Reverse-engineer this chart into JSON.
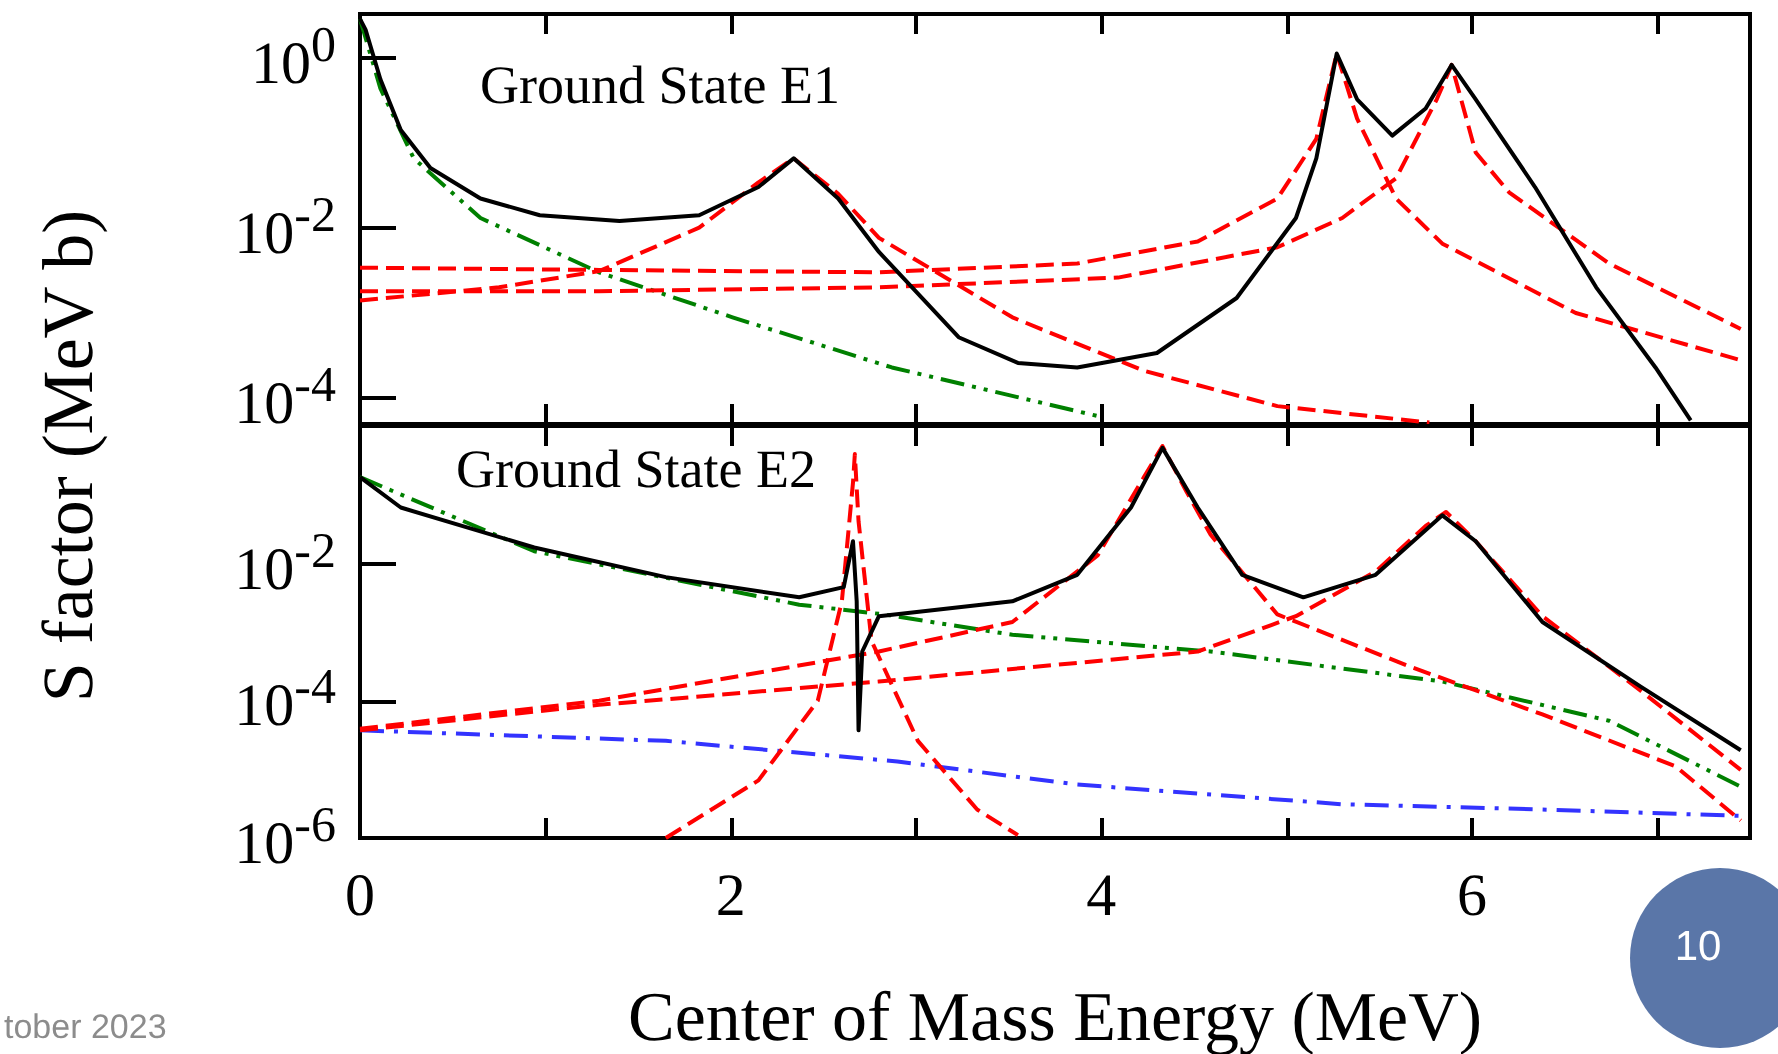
{
  "chart_data": [
    {
      "type": "line",
      "ylabel": "S factor (MeV b)",
      "annotations": [
        "Ground State E1"
      ],
      "log": true,
      "marker": "none",
      "tick_labels": "y",
      "xlim": [
        0,
        7.5
      ],
      "xticks": [
        0,
        {
          "value": 1,
          "label": null
        },
        2,
        {
          "value": 3,
          "label": null
        },
        4,
        {
          "value": 5,
          "label": null
        },
        6,
        {
          "value": 7,
          "label": null
        }
      ],
      "ylim": [
        5e-05,
        3.2
      ],
      "yticks": [
        {
          "value": 0.0001,
          "label": "10$^{-4}$"
        },
        {
          "value": 0.01,
          "label": "10$^{-2}$"
        },
        {
          "value": 1,
          "label": "10$^{0}$"
        }
      ],
      "series": [
        {
          "color": "#000000",
          "line_style": "solid",
          "x": [
            0,
            0.03,
            0.11,
            0.22,
            0.38,
            0.65,
            0.97,
            1.4,
            1.83,
            2.15,
            2.34,
            2.58,
            2.8,
            3.23,
            3.55,
            3.87,
            4.3,
            4.73,
            5.05,
            5.16,
            5.27,
            5.38,
            5.57,
            5.75,
            5.89,
            6.02,
            6.34,
            6.67,
            6.99,
            7.18
          ],
          "values": [
            2.8,
            2.1,
            0.55,
            0.14,
            0.05,
            0.022,
            0.014,
            0.012,
            0.014,
            0.03,
            0.065,
            0.022,
            0.0052,
            0.00052,
            0.00026,
            0.00023,
            0.00034,
            0.0015,
            0.013,
            0.065,
            1.1,
            0.32,
            0.12,
            0.25,
            0.81,
            0.32,
            0.03,
            0.002,
            0.00023,
            5.5e-05
          ]
        },
        {
          "color": "#008000",
          "line_style": "dashdotdot",
          "x": [
            0,
            0.11,
            0.29,
            0.65,
            1.29,
            2.01,
            2.87,
            3.98
          ],
          "values": [
            2.8,
            0.43,
            0.065,
            0.013,
            0.003,
            0.00089,
            0.00023,
            6.2e-05
          ]
        },
        {
          "color": "#ff0000",
          "line_style": "dashed",
          "x": [
            0,
            0.75,
            1.29,
            1.83,
            2.15,
            2.34,
            2.58,
            2.8,
            3.52,
            4.23,
            4.95,
            5.77
          ],
          "values": [
            0.0014,
            0.002,
            0.0031,
            0.01,
            0.034,
            0.065,
            0.025,
            0.0076,
            0.00089,
            0.00021,
            8.1e-05,
            5.2e-05
          ]
        },
        {
          "color": "#ff0000",
          "line_style": "dashed",
          "x": [
            0,
            1.29,
            2.8,
            3.87,
            4.52,
            4.95,
            5.16,
            5.27,
            5.38,
            5.59,
            5.84,
            6.56,
            7.45
          ],
          "values": [
            0.0034,
            0.0032,
            0.003,
            0.0038,
            0.0069,
            0.022,
            0.11,
            1.1,
            0.19,
            0.022,
            0.0065,
            0.001,
            0.00028
          ]
        },
        {
          "color": "#ff0000",
          "line_style": "dashed",
          "x": [
            0,
            1.29,
            2.8,
            4.09,
            4.95,
            5.3,
            5.59,
            5.81,
            5.89,
            6.02,
            6.2,
            6.74,
            7.45
          ],
          "values": [
            0.0018,
            0.0018,
            0.002,
            0.0026,
            0.0059,
            0.013,
            0.038,
            0.32,
            0.81,
            0.076,
            0.026,
            0.0038,
            0.00065
          ]
        }
      ]
    },
    {
      "type": "line",
      "xlabel": "Center of Mass Energy (MeV)",
      "annotations": [
        "Ground State E2",
        "10",
        "tober 2023"
      ],
      "log": true,
      "marker": "none",
      "xlim": [
        0,
        7.5
      ],
      "xticks": [
        0,
        {
          "value": 1,
          "label": null
        },
        2,
        {
          "value": 3,
          "label": null
        },
        4,
        {
          "value": 5,
          "label": null
        },
        6,
        {
          "value": 7,
          "label": null
        }
      ],
      "ylim": [
        1e-06,
        1
      ],
      "yticks": [
        {
          "value": 1e-06,
          "label": "10$^{-6}$"
        },
        {
          "value": 0.0001,
          "label": "10$^{-4}$"
        },
        {
          "value": 0.01,
          "label": "10$^{-2}$"
        }
      ],
      "series": [
        {
          "color": "#000000",
          "line_style": "solid",
          "x": [
            0,
            0.22,
            0.94,
            1.65,
            2.37,
            2.61,
            2.66,
            2.68,
            2.69,
            2.71,
            2.8,
            3.52,
            3.87,
            4.16,
            4.33,
            4.52,
            4.76,
            5.09,
            5.48,
            5.84,
            6.02,
            6.38,
            6.91,
            7.45
          ],
          "values": [
            0.18,
            0.065,
            0.017,
            0.0063,
            0.0032,
            0.0045,
            0.021,
            0.0028,
            3.7e-05,
            0.00052,
            0.0017,
            0.0028,
            0.0068,
            0.065,
            0.48,
            0.065,
            0.0068,
            0.0032,
            0.0068,
            0.05,
            0.021,
            0.0014,
            0.00016,
            1.9e-05
          ]
        },
        {
          "color": "#008000",
          "line_style": "dashdotdot",
          "x": [
            0,
            0.94,
            2.37,
            2.83,
            3.52,
            4.59,
            5.84,
            6.74,
            7.45
          ],
          "values": [
            0.18,
            0.015,
            0.0025,
            0.0018,
            0.00091,
            0.00052,
            0.00019,
            5.1e-05,
            5.6e-06
          ]
        },
        {
          "color": "#3333ff",
          "line_style": "dashdot",
          "x": [
            0,
            1.65,
            2.9,
            3.87,
            5.3,
            6.38,
            7.45
          ],
          "values": [
            3.7e-05,
            2.6e-05,
            1.3e-05,
            6e-06,
            3.1e-06,
            2.6e-06,
            2.1e-06
          ]
        },
        {
          "color": "#ff0000",
          "line_style": "dashed",
          "x": [
            1.65,
            2.15,
            2.47,
            2.6,
            2.66,
            2.67,
            2.69,
            2.76,
            3.01,
            3.33,
            3.55
          ],
          "values": [
            1e-06,
            6.9e-06,
            0.0001,
            0.0028,
            0.15,
            0.39,
            0.041,
            0.00074,
            2.6e-05,
            2.6e-06,
            1.1e-06
          ]
        },
        {
          "color": "#ff0000",
          "line_style": "dashed",
          "x": [
            0,
            1.29,
            2.8,
            3.52,
            3.98,
            4.23,
            4.33,
            4.46,
            4.59,
            4.95,
            5.67,
            6.38,
            7.1,
            7.45
          ],
          "values": [
            3.9e-05,
            0.0001,
            0.00052,
            0.0014,
            0.013,
            0.18,
            0.51,
            0.11,
            0.026,
            0.0018,
            0.00031,
            6.3e-05,
            1.1e-05,
            1.8e-06
          ]
        },
        {
          "color": "#ff0000",
          "line_style": "dashed",
          "x": [
            0,
            1.29,
            2.8,
            4.52,
            5.05,
            5.48,
            5.75,
            5.86,
            6.02,
            6.38,
            6.91,
            7.45
          ],
          "values": [
            3.7e-05,
            8.7e-05,
            0.00019,
            0.00052,
            0.0017,
            0.0076,
            0.035,
            0.056,
            0.021,
            0.0017,
            0.00014,
            9.8e-06
          ]
        }
      ]
    }
  ]
}
